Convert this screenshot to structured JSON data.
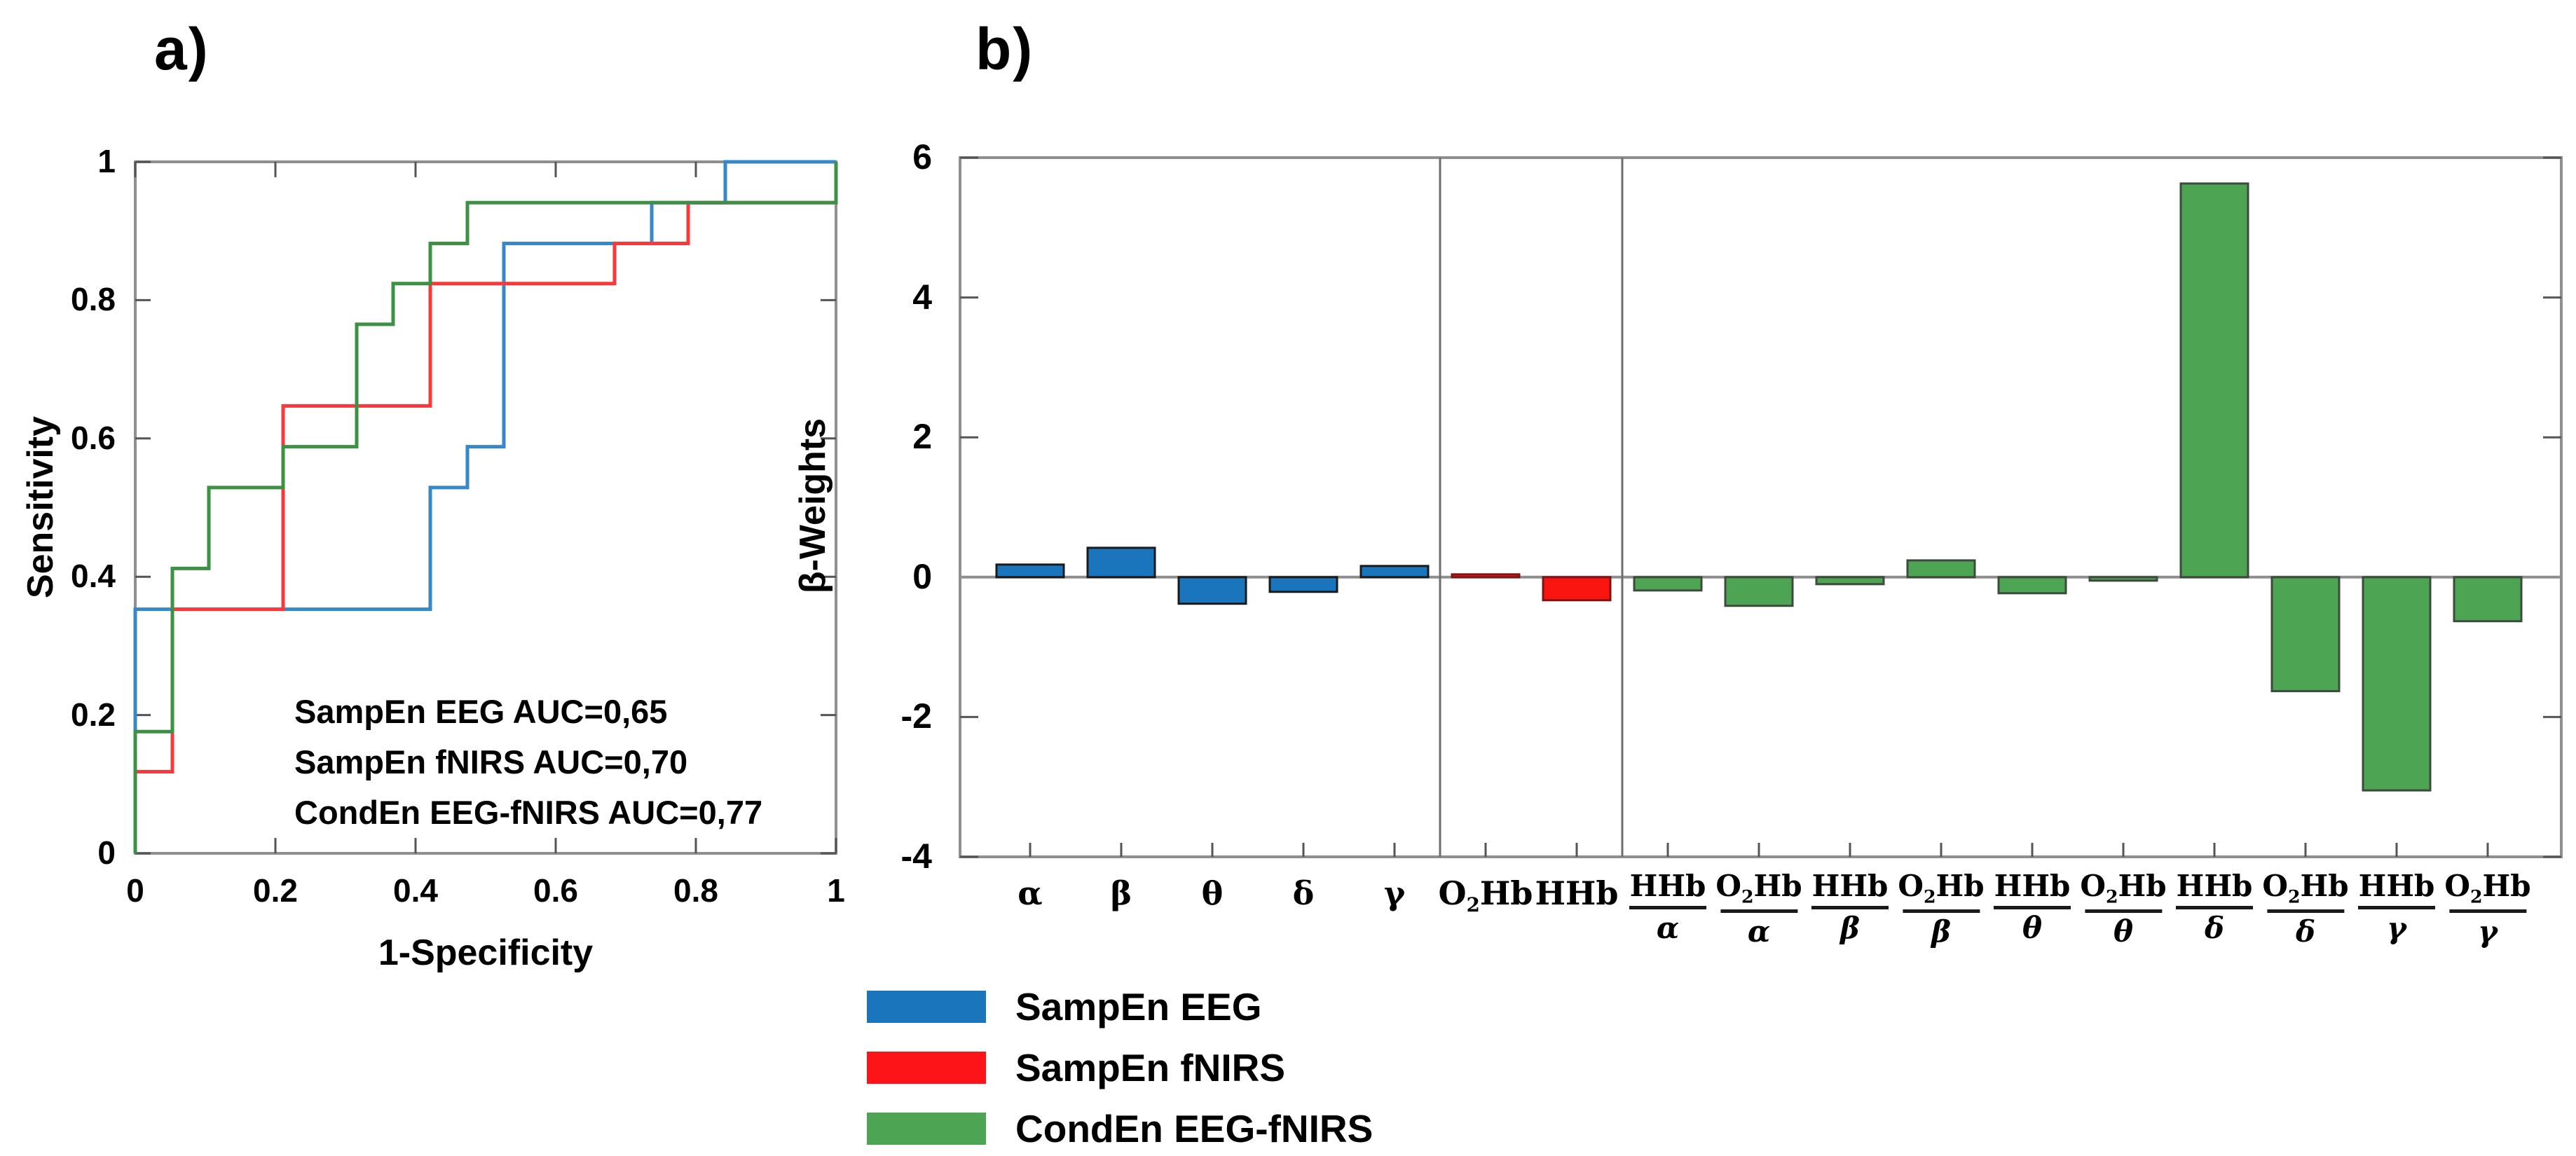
{
  "panel_a": {
    "title": "a)"
  },
  "panel_b": {
    "title": "b)"
  },
  "legend": {
    "items": [
      {
        "label": "SampEn EEG",
        "color": "#1B75BC"
      },
      {
        "label": "SampEn fNIRS",
        "color": "#FC1418"
      },
      {
        "label": "CondEn EEG-fNIRS",
        "color": "#4DA453"
      }
    ]
  },
  "chart_data": [
    {
      "type": "line",
      "subtype": "roc-step",
      "title": "ROC curves",
      "xlabel": "1-Specificity",
      "ylabel": "Sensitivity",
      "xlim": [
        0,
        1
      ],
      "ylim": [
        0,
        1
      ],
      "x_ticks": [
        0,
        0.2,
        0.4,
        0.6,
        0.8,
        1
      ],
      "y_ticks": [
        0,
        0.2,
        0.4,
        0.6,
        0.8,
        1
      ],
      "grid": false,
      "annotations": [
        "SampEn EEG AUC=0,65",
        "SampEn fNIRS AUC=0,70",
        "CondEn EEG-fNIRS AUC=0,77"
      ],
      "series": [
        {
          "name": "SampEn EEG",
          "auc": "0,65",
          "color": "#3788C8",
          "points": [
            [
              0,
              0
            ],
            [
              0,
              0.353
            ],
            [
              0.421,
              0.353
            ],
            [
              0.421,
              0.529
            ],
            [
              0.474,
              0.529
            ],
            [
              0.474,
              0.588
            ],
            [
              0.526,
              0.588
            ],
            [
              0.526,
              0.882
            ],
            [
              0.737,
              0.882
            ],
            [
              0.737,
              0.941
            ],
            [
              0.842,
              0.941
            ],
            [
              0.842,
              1
            ],
            [
              1,
              1
            ]
          ]
        },
        {
          "name": "SampEn fNIRS",
          "auc": "0,70",
          "color": "#F8383B",
          "points": [
            [
              0,
              0
            ],
            [
              0,
              0.118
            ],
            [
              0.053,
              0.118
            ],
            [
              0.053,
              0.353
            ],
            [
              0.211,
              0.353
            ],
            [
              0.211,
              0.647
            ],
            [
              0.421,
              0.647
            ],
            [
              0.421,
              0.824
            ],
            [
              0.684,
              0.824
            ],
            [
              0.684,
              0.882
            ],
            [
              0.789,
              0.882
            ],
            [
              0.789,
              0.941
            ],
            [
              1,
              0.941
            ],
            [
              1,
              1
            ]
          ]
        },
        {
          "name": "CondEn EEG-fNIRS",
          "auc": "0,77",
          "color": "#3C9145",
          "points": [
            [
              0,
              0
            ],
            [
              0,
              0.176
            ],
            [
              0.053,
              0.176
            ],
            [
              0.053,
              0.412
            ],
            [
              0.105,
              0.412
            ],
            [
              0.105,
              0.529
            ],
            [
              0.211,
              0.529
            ],
            [
              0.211,
              0.588
            ],
            [
              0.316,
              0.588
            ],
            [
              0.316,
              0.765
            ],
            [
              0.368,
              0.765
            ],
            [
              0.368,
              0.824
            ],
            [
              0.421,
              0.824
            ],
            [
              0.421,
              0.882
            ],
            [
              0.474,
              0.882
            ],
            [
              0.474,
              0.941
            ],
            [
              1,
              0.941
            ],
            [
              1,
              1
            ]
          ]
        }
      ]
    },
    {
      "type": "bar",
      "title": "Regression beta weights per feature",
      "ylabel": "β-Weights",
      "ylim": [
        -4,
        6
      ],
      "y_ticks": [
        6,
        4,
        2,
        0,
        -2,
        -4
      ],
      "grid": false,
      "categories": [
        "α",
        "β",
        "θ",
        "δ",
        "γ",
        "O2Hb",
        "HHb",
        "HHb/α",
        "O2Hb/α",
        "HHb/β",
        "O2Hb/β",
        "HHb/θ",
        "O2Hb/θ",
        "HHb/δ",
        "O2Hb/δ",
        "HHb/γ",
        "O2Hb/γ"
      ],
      "values": [
        0.18,
        0.42,
        -0.38,
        -0.21,
        0.16,
        0.04,
        -0.33,
        -0.19,
        -0.41,
        -0.1,
        0.24,
        -0.23,
        -0.05,
        5.63,
        -1.63,
        -3.05,
        -0.63
      ],
      "groups": [
        {
          "name": "SampEn EEG",
          "from": 0,
          "to": 4,
          "fill": "#1B75BC",
          "stroke": "#1A1A1A"
        },
        {
          "name": "SampEn fNIRS",
          "from": 5,
          "to": 6,
          "fill": "#FB1511",
          "stroke": "#7E1416"
        },
        {
          "name": "CondEn EEG-fNIRS",
          "from": 7,
          "to": 16,
          "fill": "#4DA453",
          "stroke": "#3F4A3F"
        }
      ],
      "separators_after": [
        4,
        6
      ],
      "legend_position": "bottom-left"
    }
  ]
}
